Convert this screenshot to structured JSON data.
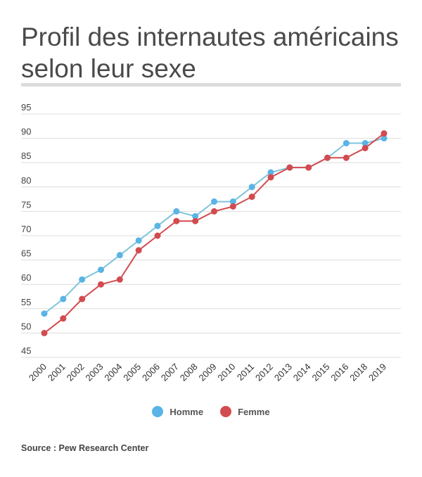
{
  "title": "Profil des internautes américains selon leur sexe",
  "source": "Source : Pew Research Center",
  "chart_data": {
    "type": "line",
    "title": "Profil des internautes américains selon leur sexe",
    "categories": [
      "2000",
      "2001",
      "2002",
      "2003",
      "2004",
      "2005",
      "2006",
      "2007",
      "2008",
      "2009",
      "2010",
      "2011",
      "2012",
      "2013",
      "2014",
      "2015",
      "2016",
      "2018",
      "2019"
    ],
    "series": [
      {
        "name": "Homme",
        "color": "#5ab4e5",
        "line_color": "#7ec4dc",
        "values": [
          54,
          57,
          61,
          63,
          66,
          69,
          72,
          75,
          74,
          77,
          77,
          80,
          83,
          84,
          84,
          86,
          89,
          89,
          90
        ]
      },
      {
        "name": "Femme",
        "color": "#d24b4f",
        "line_color": "#d24b4f",
        "values": [
          50,
          53,
          57,
          60,
          61,
          67,
          70,
          73,
          73,
          75,
          76,
          78,
          82,
          84,
          84,
          86,
          86,
          88,
          91
        ]
      }
    ],
    "y_ticks": [
      45,
      50,
      55,
      60,
      65,
      70,
      75,
      80,
      85,
      90,
      95
    ],
    "ylim": [
      45,
      95
    ],
    "grid": true,
    "legend_position": "bottom-center"
  }
}
